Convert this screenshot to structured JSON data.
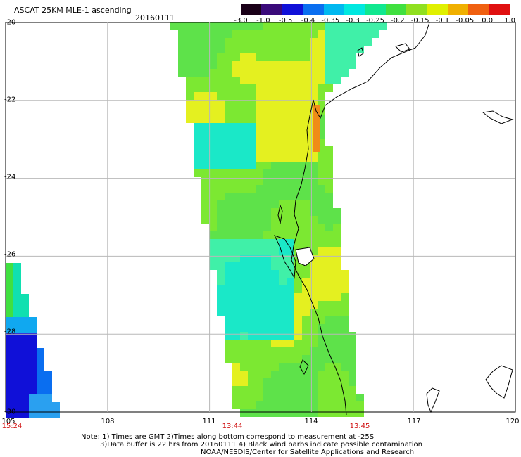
{
  "header": {
    "title": "ASCAT 25KM MLE-1 ascending",
    "date": "20160111"
  },
  "colorbar": {
    "labels": [
      "-3.0",
      "-1.0",
      "-0.5",
      "-0.4",
      "-0.35",
      "-0.3",
      "-0.25",
      "-0.2",
      "-0.15",
      "-0.1",
      "-0.05",
      "0.0",
      "1.0"
    ],
    "colors": [
      "#1a0018",
      "#3a0a7a",
      "#1010d8",
      "#0a6ef0",
      "#00b8f0",
      "#00e8e0",
      "#10e890",
      "#40e040",
      "#90e020",
      "#e0f000",
      "#f0b000",
      "#f06010",
      "#e01010"
    ]
  },
  "axes": {
    "lat_labels": [
      "-20",
      "-22",
      "-24",
      "-26",
      "-28",
      "-30"
    ],
    "lon_labels": [
      "105",
      "108",
      "111",
      "114",
      "117",
      "120"
    ]
  },
  "time_labels": [
    "15:24",
    "13:44",
    "13:45"
  ],
  "time_color": "#d01010",
  "notes": {
    "line1": "Note: 1) Times are GMT 2)Times along bottom correspond to measurement at -25S",
    "line2": "3)Data buffer is 22 hrs from 20160111 4) Black wind barbs indicate possible contamination",
    "line3": "NOAA/NESDIS/Center for Satellite Applications and Research"
  }
}
